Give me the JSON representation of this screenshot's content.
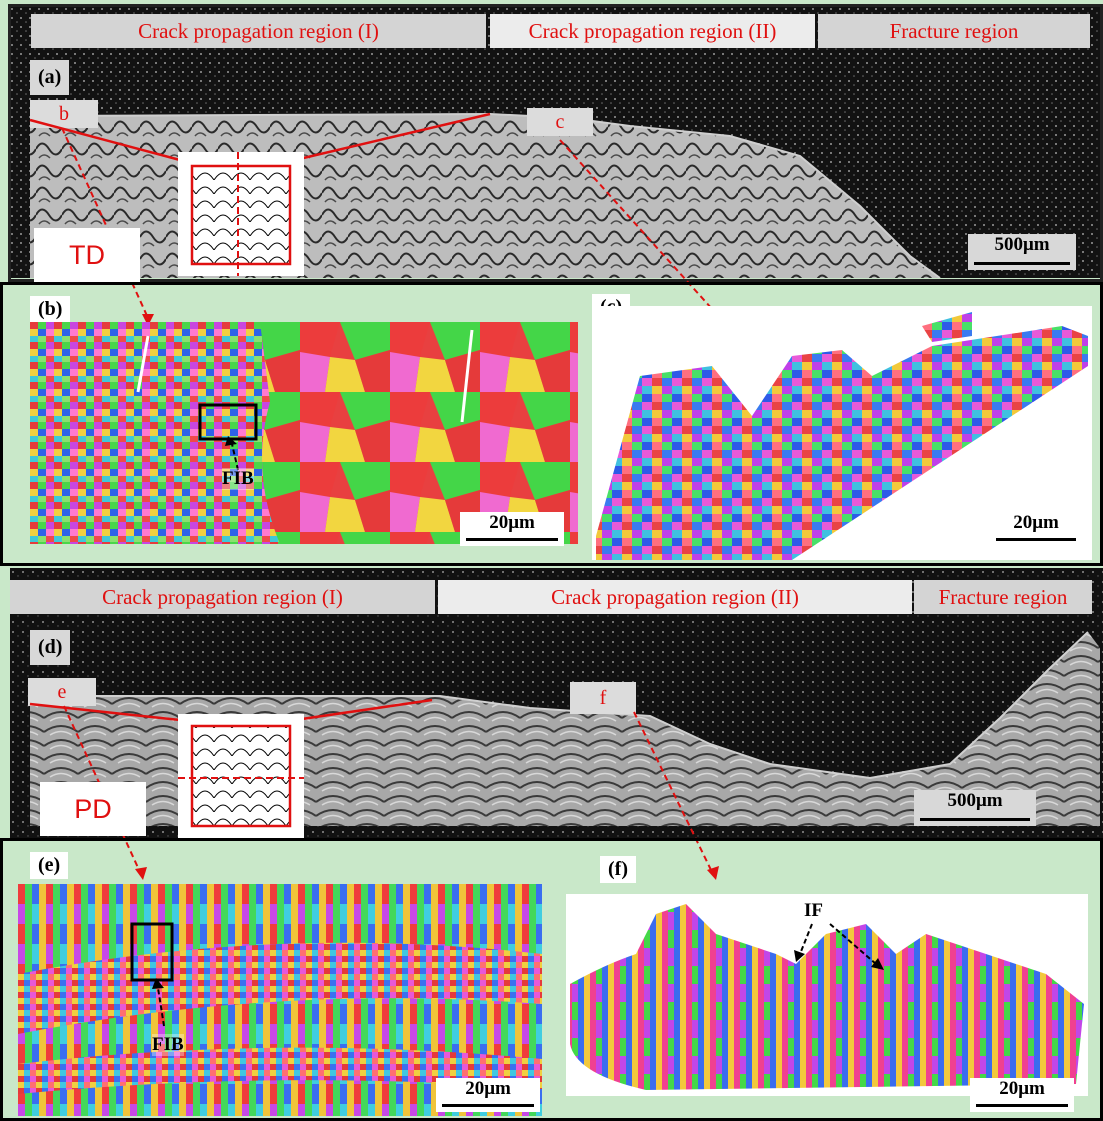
{
  "top": {
    "regions": [
      "Crack propagation region (I)",
      "Crack propagation region (II)",
      "Fracture region"
    ],
    "panel_a": "(a)",
    "panel_b": "(b)",
    "panel_c": "(c)",
    "marker_b": "b",
    "marker_c": "c",
    "direction": "TD",
    "scale_sem": "500μm",
    "scale_b": "20μm",
    "scale_c": "20μm",
    "fib": "FIB"
  },
  "bottom": {
    "regions": [
      "Crack propagation region (I)",
      "Crack propagation region (II)",
      "Fracture region"
    ],
    "panel_d": "(d)",
    "panel_e": "(e)",
    "panel_f": "(f)",
    "marker_e": "e",
    "marker_f": "f",
    "direction": "PD",
    "scale_sem": "500μm",
    "scale_e": "20μm",
    "scale_f": "20μm",
    "fib": "FIB",
    "if_label": "IF"
  },
  "colors": {
    "red": "#e01010",
    "background": "#c9e8c9",
    "sem_dark": "#141414"
  }
}
